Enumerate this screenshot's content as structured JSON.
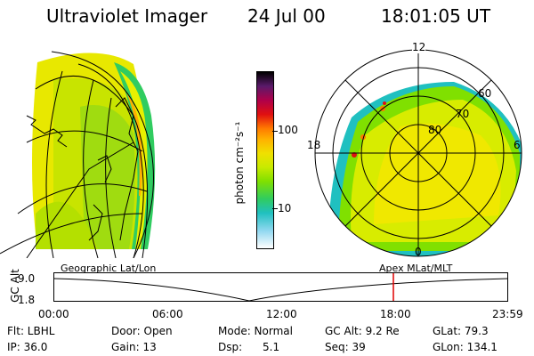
{
  "header": {
    "instrument": "Ultraviolet Imager",
    "date": "24 Jul 00",
    "time": "18:01:05 UT"
  },
  "colorbar": {
    "unit_label": "photon cm⁻²s⁻¹",
    "ticks": [
      "100",
      "10"
    ],
    "colors": [
      "#000000",
      "#5a1a6a",
      "#b0004a",
      "#e01010",
      "#ff7a00",
      "#ffb000",
      "#f0e000",
      "#c8ea00",
      "#80e000",
      "#30cc60",
      "#20c0c0",
      "#90d8f0",
      "#ffffff"
    ]
  },
  "left_panel": {
    "label": "Geographic Lat/Lon"
  },
  "right_panel": {
    "label": "Apex MLat/MLT",
    "mlt_labels": [
      "12",
      "18",
      "6",
      "0"
    ],
    "mlat_labels": [
      "60",
      "70",
      "80"
    ]
  },
  "timeline": {
    "axis_label": "GC Alt",
    "y_ticks": [
      "9.0",
      "1.8"
    ],
    "x_ticks": [
      "00:00",
      "06:00",
      "12:00",
      "18:00",
      "23:59"
    ],
    "marker_color": "#e00000"
  },
  "info": {
    "flt": "Flt: LBHL",
    "ip": "IP: 36.0",
    "door": "Door: Open",
    "gain": "Gain: 13",
    "mode": "Mode: Normal",
    "dsp": "Dsp:      5.1",
    "gc_alt": "GC Alt: 9.2 Re",
    "seq": "Seq: 39",
    "glat": "GLat:  79.3",
    "glon": "GLon: 134.1"
  }
}
